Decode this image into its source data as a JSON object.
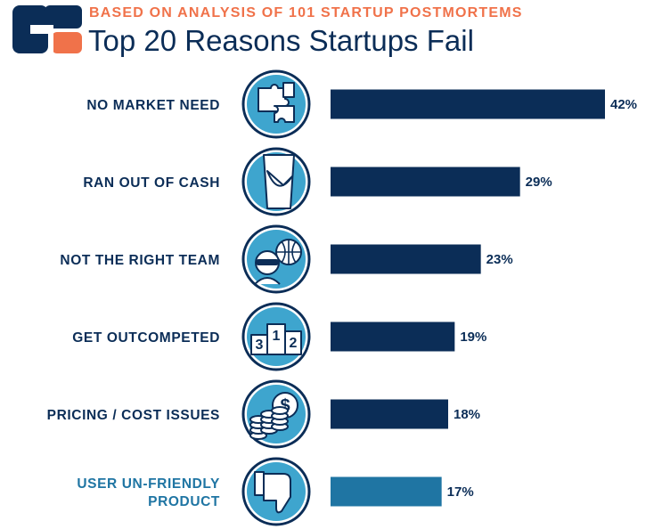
{
  "header": {
    "subtitle": "BASED ON ANALYSIS OF 101 STARTUP POSTMORTEMS",
    "title": "Top 20 Reasons Startups Fail"
  },
  "colors": {
    "navy": "#0b2d57",
    "teal": "#1f75a3",
    "orange": "#f0724a",
    "icon_fill": "#3ea5ce",
    "icon_stroke": "#0b2d57"
  },
  "chart_data": {
    "type": "bar",
    "orientation": "horizontal",
    "title": "Top 20 Reasons Startups Fail",
    "subtitle": "BASED ON ANALYSIS OF 101 STARTUP POSTMORTEMS",
    "categories": [
      "NO MARKET NEED",
      "RAN OUT OF CASH",
      "NOT THE RIGHT TEAM",
      "GET OUTCOMPETED",
      "PRICING / COST ISSUES",
      "USER UN-FRIENDLY PRODUCT"
    ],
    "label_lines": [
      [
        "NO MARKET NEED"
      ],
      [
        "RAN OUT OF CASH"
      ],
      [
        "NOT THE RIGHT TEAM"
      ],
      [
        "GET OUTCOMPETED"
      ],
      [
        "PRICING / COST ISSUES"
      ],
      [
        "USER UN-FRIENDLY",
        "PRODUCT"
      ]
    ],
    "values": [
      42,
      29,
      23,
      19,
      18,
      17
    ],
    "value_labels": [
      "42%",
      "29%",
      "23%",
      "19%",
      "18%",
      "17%"
    ],
    "icons": [
      "puzzle-icon",
      "empty-pocket-icon",
      "team-icon",
      "podium-icon",
      "coins-dollar-icon",
      "thumbs-down-icon"
    ],
    "podium_digits": [
      "3",
      "1",
      "2"
    ],
    "dollar_sign": "$",
    "bar_colors": [
      "#0b2d57",
      "#0b2d57",
      "#0b2d57",
      "#0b2d57",
      "#0b2d57",
      "#1f75a3"
    ],
    "label_colors": [
      "#0b2d57",
      "#0b2d57",
      "#0b2d57",
      "#0b2d57",
      "#0b2d57",
      "#1f75a3"
    ],
    "xlim": [
      0,
      42
    ],
    "grid": false,
    "legend": "none"
  }
}
